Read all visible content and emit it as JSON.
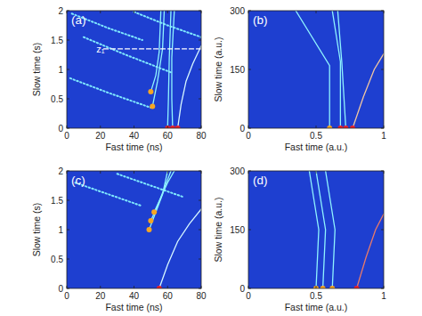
{
  "chart_data": [
    {
      "type": "line",
      "title": "(a)",
      "x_label": "Fast time (ns)",
      "y_label": "Slow time (s)",
      "xlim": [
        0,
        80
      ],
      "ylim": [
        0,
        2
      ],
      "xticks": [
        0,
        20,
        40,
        60,
        80
      ],
      "yticks": [
        0,
        0.5,
        1,
        1.5,
        2
      ],
      "annotations": [
        {
          "text": "z₁",
          "x": 22,
          "y": 1.35
        }
      ],
      "series": [
        {
          "type": "line",
          "line_style": "dotted",
          "color": "#7fe9ff",
          "x": [
            3,
            25,
            45
          ],
          "values": [
            1.95,
            1.7,
            1.5
          ]
        },
        {
          "type": "line",
          "line_style": "dotted",
          "color": "#7fe9ff",
          "x": [
            10,
            35,
            62
          ],
          "values": [
            1.55,
            1.25,
            0.95
          ]
        },
        {
          "type": "line",
          "line_style": "dotted",
          "color": "#7fe9ff",
          "x": [
            2,
            25,
            50
          ],
          "values": [
            0.85,
            0.6,
            0.35
          ]
        },
        {
          "type": "line",
          "line_style": "dotted",
          "color": "#7fe9ff",
          "x": [
            40,
            60,
            80
          ],
          "values": [
            1.98,
            1.75,
            1.55
          ]
        },
        {
          "type": "line",
          "line_style": "solid",
          "color": "#8ff4ff",
          "x": [
            50,
            53,
            55,
            56
          ],
          "values": [
            0.62,
            0.9,
            1.3,
            2
          ]
        },
        {
          "type": "line",
          "line_style": "solid",
          "color": "#8ff4ff",
          "x": [
            51,
            54,
            57,
            58
          ],
          "values": [
            0.37,
            0.8,
            1.35,
            2
          ]
        },
        {
          "type": "line",
          "line_style": "solid",
          "color": "#8ff4ff",
          "x": [
            60,
            60.5,
            61,
            62
          ],
          "values": [
            0,
            0.5,
            1.2,
            2
          ]
        },
        {
          "type": "line",
          "line_style": "solid",
          "color": "#8ff4ff",
          "x": [
            63,
            62.5,
            62.5,
            64
          ],
          "values": [
            0,
            0.5,
            1.2,
            2
          ]
        },
        {
          "type": "line",
          "line_style": "solid",
          "color": "#d8f8ff",
          "x": [
            66,
            68,
            71,
            75,
            80
          ],
          "values": [
            0,
            0.4,
            0.8,
            1.1,
            1.4
          ]
        },
        {
          "type": "line",
          "line_style": "dashed",
          "color": "#ffffff",
          "x": [
            22,
            80
          ],
          "values": [
            1.35,
            1.35
          ]
        },
        {
          "type": "scatter",
          "marker": "circle",
          "color": "#f5a623",
          "x": [
            50,
            51
          ],
          "values": [
            0.62,
            0.37
          ]
        },
        {
          "type": "scatter",
          "marker": "circle",
          "color": "#e8202a",
          "x": [
            60,
            63,
            66
          ],
          "values": [
            0,
            0,
            0
          ]
        }
      ]
    },
    {
      "type": "line",
      "title": "(b)",
      "x_label": "Fast time (a.u.)",
      "y_label": "Slow time (a.u.)",
      "xlim": [
        0,
        1
      ],
      "ylim": [
        0,
        300
      ],
      "xticks": [
        0,
        0.5,
        1
      ],
      "yticks": [
        0,
        150,
        300
      ],
      "series": [
        {
          "type": "line",
          "line_style": "solid",
          "color": "#8ff4ff",
          "x": [
            0.6,
            0.6,
            0.35
          ],
          "values": [
            0,
            160,
            300
          ]
        },
        {
          "type": "line",
          "line_style": "solid",
          "color": "#8ff4ff",
          "x": [
            0.68,
            0.68,
            0.62
          ],
          "values": [
            0,
            170,
            300
          ]
        },
        {
          "type": "line",
          "line_style": "solid",
          "color": "#8ff4ff",
          "x": [
            0.72,
            0.69,
            0.66
          ],
          "values": [
            0,
            170,
            300
          ]
        },
        {
          "type": "line",
          "line_style": "solid",
          "color": "#f2c7a0",
          "x": [
            0.77,
            0.85,
            0.93,
            1
          ],
          "values": [
            0,
            80,
            150,
            190
          ]
        },
        {
          "type": "scatter",
          "marker": "circle",
          "color": "#f5a623",
          "x": [
            0.6
          ],
          "values": [
            0
          ]
        },
        {
          "type": "scatter",
          "marker": "circle",
          "color": "#e8202a",
          "x": [
            0.68,
            0.72,
            0.77
          ],
          "values": [
            0,
            0,
            0
          ]
        }
      ]
    },
    {
      "type": "line",
      "title": "(c)",
      "x_label": "Fast time (ns)",
      "y_label": "Slow time (s)",
      "xlim": [
        0,
        80
      ],
      "ylim": [
        0,
        2
      ],
      "xticks": [
        0,
        20,
        40,
        60,
        80
      ],
      "yticks": [
        0,
        0.5,
        1,
        1.5,
        2
      ],
      "series": [
        {
          "type": "line",
          "line_style": "dotted",
          "color": "#7fe9ff",
          "x": [
            30,
            50,
            70
          ],
          "values": [
            1.95,
            1.75,
            1.55
          ]
        },
        {
          "type": "line",
          "line_style": "dotted",
          "color": "#7fe9ff",
          "x": [
            5,
            25,
            45
          ],
          "values": [
            1.8,
            1.6,
            1.4
          ]
        },
        {
          "type": "line",
          "line_style": "solid",
          "color": "#8ff4ff",
          "x": [
            49,
            53,
            57,
            60
          ],
          "values": [
            1.0,
            1.3,
            1.6,
            2
          ]
        },
        {
          "type": "line",
          "line_style": "solid",
          "color": "#8ff4ff",
          "x": [
            50,
            54,
            58,
            62
          ],
          "values": [
            1.15,
            1.4,
            1.7,
            2
          ]
        },
        {
          "type": "line",
          "line_style": "solid",
          "color": "#8ff4ff",
          "x": [
            52,
            56,
            60,
            64
          ],
          "values": [
            1.3,
            1.55,
            1.8,
            2
          ]
        },
        {
          "type": "line",
          "line_style": "solid",
          "color": "#d8f8ff",
          "x": [
            55,
            60,
            66,
            73,
            80
          ],
          "values": [
            0,
            0.4,
            0.8,
            1.1,
            1.35
          ]
        },
        {
          "type": "scatter",
          "marker": "circle",
          "color": "#f5a623",
          "x": [
            49,
            50,
            52
          ],
          "values": [
            1.0,
            1.15,
            1.3
          ]
        },
        {
          "type": "scatter",
          "marker": "circle",
          "color": "#e8202a",
          "x": [
            55
          ],
          "values": [
            0
          ]
        }
      ]
    },
    {
      "type": "line",
      "title": "(d)",
      "x_label": "Fast time (a.u.)",
      "y_label": "Slow time (a.u.)",
      "xlim": [
        0,
        1
      ],
      "ylim": [
        0,
        300
      ],
      "xticks": [
        0,
        0.5,
        1
      ],
      "yticks": [
        0,
        150,
        300
      ],
      "series": [
        {
          "type": "line",
          "line_style": "solid",
          "color": "#8ff4ff",
          "x": [
            0.5,
            0.52,
            0.45
          ],
          "values": [
            0,
            150,
            300
          ]
        },
        {
          "type": "line",
          "line_style": "solid",
          "color": "#8ff4ff",
          "x": [
            0.55,
            0.57,
            0.5
          ],
          "values": [
            0,
            150,
            300
          ]
        },
        {
          "type": "line",
          "line_style": "solid",
          "color": "#8ff4ff",
          "x": [
            0.62,
            0.64,
            0.57
          ],
          "values": [
            0,
            150,
            300
          ]
        },
        {
          "type": "line",
          "line_style": "solid",
          "color": "#e87a6a",
          "x": [
            0.8,
            0.87,
            0.94,
            1
          ],
          "values": [
            0,
            80,
            150,
            190
          ]
        },
        {
          "type": "scatter",
          "marker": "circle",
          "color": "#f5a623",
          "x": [
            0.5,
            0.55,
            0.62
          ],
          "values": [
            0,
            0,
            0
          ]
        },
        {
          "type": "scatter",
          "marker": "circle",
          "color": "#e8202a",
          "x": [
            0.8
          ],
          "values": [
            0
          ]
        }
      ]
    }
  ]
}
